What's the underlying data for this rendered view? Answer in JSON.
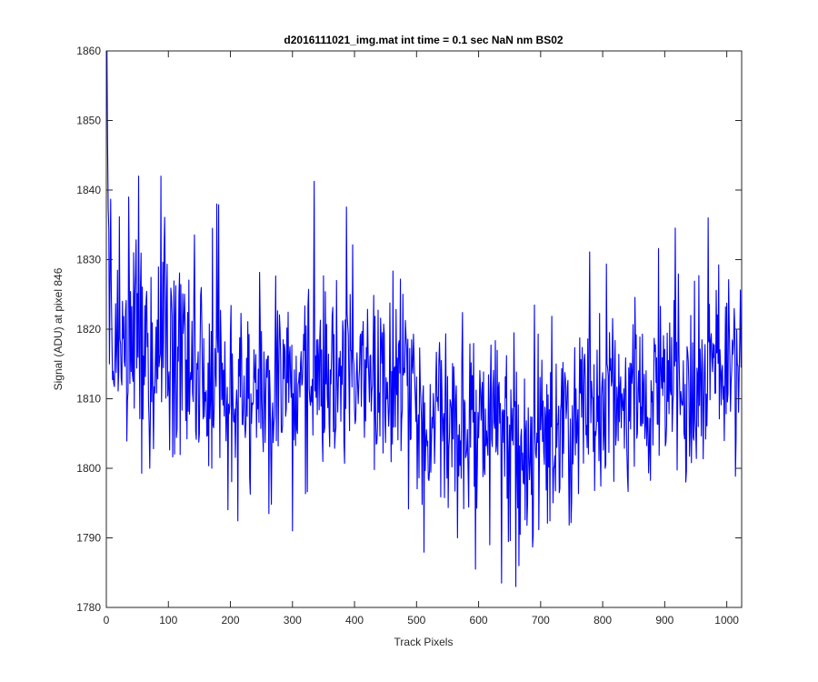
{
  "chart_data": {
    "type": "line",
    "title": "d2016111021_img.mat int time = 0.1 sec  NaN nm BS02",
    "xlabel": "Track Pixels",
    "ylabel": "Signal (ADU) at pixel 846",
    "xlim": [
      0,
      1024
    ],
    "ylim": [
      1780,
      1860
    ],
    "xticks": [
      0,
      100,
      200,
      300,
      400,
      500,
      600,
      700,
      800,
      900,
      1000
    ],
    "yticks": [
      1780,
      1790,
      1800,
      1810,
      1820,
      1830,
      1840,
      1850,
      1860
    ],
    "grid": false,
    "series": [
      {
        "color": "#0000ff",
        "x_start": 1,
        "x_step": 1,
        "count": 1024,
        "anchor_x": [
          1,
          3,
          5,
          8,
          12,
          20,
          30,
          40,
          52,
          60,
          70,
          80,
          88,
          100,
          120,
          150,
          180,
          200,
          230,
          260,
          280,
          300,
          320,
          350,
          380,
          400,
          430,
          460,
          500,
          540,
          566,
          600,
          620,
          640,
          660,
          680,
          700,
          750,
          800,
          850,
          880,
          900,
          950,
          970,
          1000,
          1024
        ],
        "anchor_y": [
          1845,
          1840,
          1832,
          1824,
          1820,
          1819,
          1818,
          1818,
          1820,
          1818,
          1816,
          1817,
          1818,
          1817,
          1816,
          1815,
          1814,
          1813,
          1812,
          1812,
          1811,
          1811,
          1812,
          1812,
          1813,
          1814,
          1813,
          1811,
          1809,
          1807,
          1806,
          1806,
          1805,
          1804,
          1803,
          1803,
          1805,
          1807,
          1810,
          1811,
          1811,
          1811,
          1813,
          1815,
          1815,
          1814
        ],
        "noise_sd": 7.5,
        "extremes": [
          {
            "x": 1,
            "y": 1860
          },
          {
            "x": 5,
            "y": 1815
          },
          {
            "x": 36,
            "y": 1839
          },
          {
            "x": 52,
            "y": 1842
          },
          {
            "x": 70,
            "y": 1800
          },
          {
            "x": 88,
            "y": 1842
          },
          {
            "x": 178,
            "y": 1838
          },
          {
            "x": 300,
            "y": 1791
          },
          {
            "x": 566,
            "y": 1790
          },
          {
            "x": 618,
            "y": 1789
          },
          {
            "x": 660,
            "y": 1783
          },
          {
            "x": 665,
            "y": 1786
          },
          {
            "x": 970,
            "y": 1836
          }
        ]
      }
    ]
  }
}
